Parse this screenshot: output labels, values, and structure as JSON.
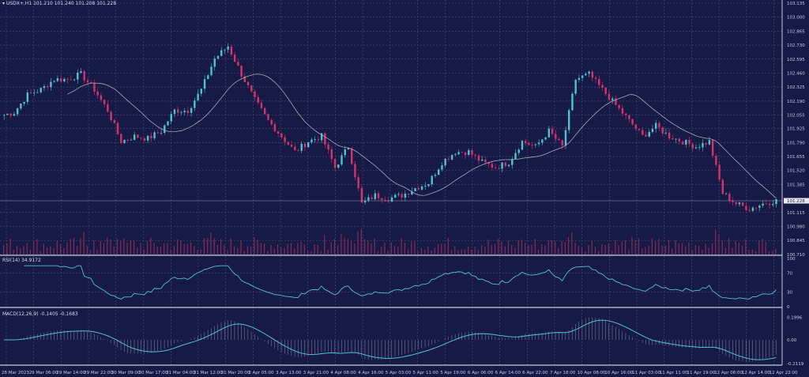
{
  "header": {
    "symbol": "USDX+,H1",
    "ohlc": "101.210 101.240 101.208 101.228"
  },
  "rsi_label": "RSI(14) 34.9172",
  "macd_label": "MACD(12,26,9) -0.1405 -0.1683",
  "colors": {
    "background": "#161a45",
    "bull": "#4fc3d0",
    "bear": "#d6336c",
    "ma": "#a9a9b5",
    "grid": "#4a4f7a",
    "volume": "#8a2a5a"
  },
  "chart_data": {
    "type": "candlestick",
    "title": "",
    "price_axis": [
      "103.135",
      "103.000",
      "102.865",
      "102.730",
      "102.595",
      "102.460",
      "102.325",
      "102.190",
      "102.055",
      "101.925",
      "101.790",
      "101.655",
      "101.520",
      "101.385",
      "101.115",
      "100.980",
      "100.845",
      "100.710"
    ],
    "ylim": [
      100.71,
      103.135
    ],
    "current_price": "101.228",
    "time_axis": [
      "28 Mar 2023",
      "29 Mar 06:00",
      "29 Mar 14:00",
      "29 Mar 22:00",
      "30 Mar 09:00",
      "30 Mar 17:00",
      "31 Mar 04:00",
      "31 Mar 12:00",
      "31 Mar 20:00",
      "3 Apr 05:00",
      "3 Apr 13:00",
      "3 Apr 21:00",
      "4 Apr 08:00",
      "4 Apr 16:00",
      "5 Apr 03:00",
      "5 Apr 11:00",
      "5 Apr 19:00",
      "6 Apr 06:00",
      "6 Apr 14:00",
      "6 Apr 22:00",
      "7 Apr 18:00",
      "10 Apr 08:00",
      "10 Apr 16:00",
      "11 Apr 03:00",
      "11 Apr 11:00",
      "11 Apr 19:00",
      "12 Apr 06:00",
      "12 Apr 14:00",
      "12 Apr 22:00"
    ],
    "closes": [
      102.05,
      102.08,
      102.25,
      102.3,
      102.4,
      102.4,
      102.45,
      102.3,
      102.1,
      101.8,
      101.85,
      101.83,
      101.9,
      102.1,
      102.1,
      102.3,
      102.6,
      102.72,
      102.45,
      102.2,
      102.0,
      101.85,
      101.7,
      101.8,
      101.85,
      101.55,
      101.75,
      101.2,
      101.28,
      101.25,
      101.28,
      101.35,
      101.4,
      101.6,
      101.7,
      101.7,
      101.6,
      101.55,
      101.6,
      101.8,
      101.75,
      101.9,
      101.75,
      102.4,
      102.45,
      102.3,
      102.15,
      102.0,
      101.85,
      101.95,
      101.85,
      101.8,
      101.75,
      101.8,
      101.3,
      101.2,
      101.15,
      101.2,
      101.23
    ],
    "indicators": {
      "ma": "moving average",
      "rsi": {
        "levels": [
          "100",
          "70",
          "30",
          "0"
        ]
      },
      "macd": {
        "levels": [
          "0.1996",
          "0.00",
          "-0.2119"
        ]
      }
    }
  }
}
